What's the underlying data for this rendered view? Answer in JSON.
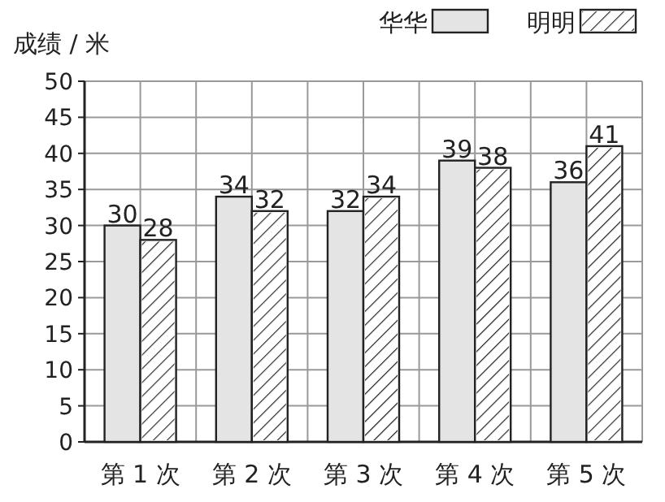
{
  "chart_data": {
    "type": "bar",
    "ylabel": "成绩 / 米",
    "categories": [
      "第 1 次",
      "第 2 次",
      "第 3 次",
      "第 4 次",
      "第 5 次"
    ],
    "series": [
      {
        "name": "华华",
        "color": "#e4e4e4",
        "values": [
          30,
          34,
          32,
          39,
          36
        ]
      },
      {
        "name": "明明",
        "color": "#ffffff",
        "values": [
          28,
          32,
          34,
          38,
          41
        ]
      }
    ],
    "ylim": [
      0,
      50
    ],
    "yticks": [
      0,
      5,
      10,
      15,
      20,
      25,
      30,
      35,
      40,
      45,
      50
    ],
    "grid": true,
    "legend": "top right",
    "data_labels": true
  }
}
